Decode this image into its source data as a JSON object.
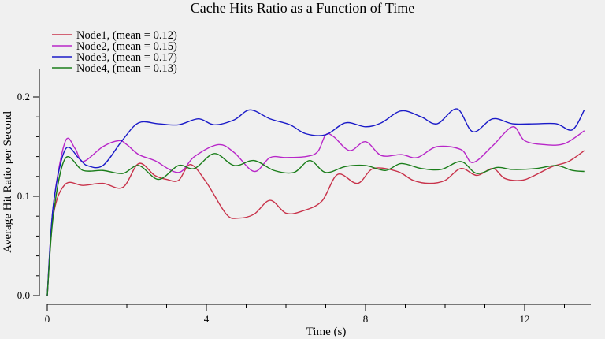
{
  "chart_data": {
    "type": "line",
    "title": "Cache Hits Ratio as a Function of Time",
    "xlabel": "Time (s)",
    "ylabel": "Average Hit Ratio per Second",
    "xlim": [
      0,
      14
    ],
    "ylim": [
      0,
      0.22
    ],
    "x_ticks": [
      0,
      4,
      8,
      12
    ],
    "x_tick_labels": [
      "0",
      "4",
      "8",
      "12"
    ],
    "x_minor_ticks": [
      1,
      2,
      3,
      5,
      6,
      7,
      9,
      10,
      11,
      13
    ],
    "y_ticks": [
      0,
      0.1,
      0.2
    ],
    "y_tick_labels": [
      "0.0",
      "0.1",
      "0.2"
    ],
    "y_minor_ticks": [
      0.02,
      0.04,
      0.06,
      0.08,
      0.12,
      0.14,
      0.16,
      0.18
    ],
    "grid": false,
    "legend_position": "top-left",
    "series": [
      {
        "name": "Node1, (mean = 0.12)",
        "color": "#c8324a",
        "points": [
          [
            0,
            0
          ],
          [
            0.15,
            0.08
          ],
          [
            0.45,
            0.112
          ],
          [
            0.9,
            0.111
          ],
          [
            1.4,
            0.113
          ],
          [
            1.9,
            0.109
          ],
          [
            2.3,
            0.133
          ],
          [
            2.7,
            0.121
          ],
          [
            3.0,
            0.117
          ],
          [
            3.3,
            0.116
          ],
          [
            3.6,
            0.132
          ],
          [
            4.0,
            0.114
          ],
          [
            4.5,
            0.082
          ],
          [
            4.8,
            0.078
          ],
          [
            5.2,
            0.082
          ],
          [
            5.6,
            0.096
          ],
          [
            6.0,
            0.083
          ],
          [
            6.4,
            0.085
          ],
          [
            6.9,
            0.095
          ],
          [
            7.3,
            0.122
          ],
          [
            7.8,
            0.113
          ],
          [
            8.2,
            0.128
          ],
          [
            8.8,
            0.125
          ],
          [
            9.2,
            0.116
          ],
          [
            9.6,
            0.113
          ],
          [
            10.0,
            0.116
          ],
          [
            10.4,
            0.128
          ],
          [
            10.8,
            0.121
          ],
          [
            11.2,
            0.128
          ],
          [
            11.5,
            0.118
          ],
          [
            11.9,
            0.116
          ],
          [
            12.2,
            0.12
          ],
          [
            12.7,
            0.13
          ],
          [
            13.1,
            0.135
          ],
          [
            13.5,
            0.146
          ]
        ]
      },
      {
        "name": "Node2, (mean = 0.15)",
        "color": "#b827c8",
        "points": [
          [
            0,
            0
          ],
          [
            0.15,
            0.09
          ],
          [
            0.45,
            0.155
          ],
          [
            0.7,
            0.148
          ],
          [
            0.9,
            0.135
          ],
          [
            1.4,
            0.15
          ],
          [
            1.8,
            0.156
          ],
          [
            2.0,
            0.152
          ],
          [
            2.3,
            0.142
          ],
          [
            2.7,
            0.136
          ],
          [
            3.3,
            0.124
          ],
          [
            3.7,
            0.14
          ],
          [
            4.3,
            0.152
          ],
          [
            4.7,
            0.144
          ],
          [
            5.2,
            0.125
          ],
          [
            5.6,
            0.139
          ],
          [
            6.0,
            0.139
          ],
          [
            6.5,
            0.14
          ],
          [
            6.8,
            0.145
          ],
          [
            7.0,
            0.162
          ],
          [
            7.2,
            0.16
          ],
          [
            7.6,
            0.146
          ],
          [
            8.0,
            0.155
          ],
          [
            8.4,
            0.141
          ],
          [
            8.9,
            0.142
          ],
          [
            9.3,
            0.139
          ],
          [
            9.8,
            0.15
          ],
          [
            10.4,
            0.147
          ],
          [
            10.7,
            0.134
          ],
          [
            11.2,
            0.151
          ],
          [
            11.7,
            0.17
          ],
          [
            12.0,
            0.156
          ],
          [
            12.5,
            0.152
          ],
          [
            13.0,
            0.153
          ],
          [
            13.5,
            0.166
          ]
        ]
      },
      {
        "name": "Node3, (mean = 0.17)",
        "color": "#1a1ac8",
        "points": [
          [
            0,
            0
          ],
          [
            0.15,
            0.09
          ],
          [
            0.45,
            0.147
          ],
          [
            0.8,
            0.138
          ],
          [
            1.0,
            0.131
          ],
          [
            1.4,
            0.131
          ],
          [
            1.9,
            0.157
          ],
          [
            2.3,
            0.174
          ],
          [
            2.8,
            0.173
          ],
          [
            3.3,
            0.172
          ],
          [
            3.8,
            0.178
          ],
          [
            4.2,
            0.172
          ],
          [
            4.7,
            0.177
          ],
          [
            5.1,
            0.187
          ],
          [
            5.6,
            0.178
          ],
          [
            6.1,
            0.172
          ],
          [
            6.5,
            0.163
          ],
          [
            7.0,
            0.162
          ],
          [
            7.5,
            0.174
          ],
          [
            8.0,
            0.17
          ],
          [
            8.4,
            0.174
          ],
          [
            8.9,
            0.186
          ],
          [
            9.4,
            0.18
          ],
          [
            9.8,
            0.173
          ],
          [
            10.3,
            0.188
          ],
          [
            10.7,
            0.165
          ],
          [
            11.2,
            0.178
          ],
          [
            11.7,
            0.173
          ],
          [
            12.3,
            0.173
          ],
          [
            12.8,
            0.173
          ],
          [
            13.2,
            0.167
          ],
          [
            13.5,
            0.187
          ]
        ]
      },
      {
        "name": "Node4, (mean = 0.13)",
        "color": "#1a7d1a",
        "points": [
          [
            0,
            0
          ],
          [
            0.15,
            0.08
          ],
          [
            0.45,
            0.138
          ],
          [
            0.9,
            0.126
          ],
          [
            1.4,
            0.126
          ],
          [
            1.9,
            0.123
          ],
          [
            2.3,
            0.131
          ],
          [
            2.8,
            0.117
          ],
          [
            3.3,
            0.131
          ],
          [
            3.7,
            0.128
          ],
          [
            4.2,
            0.143
          ],
          [
            4.7,
            0.131
          ],
          [
            5.2,
            0.136
          ],
          [
            5.7,
            0.126
          ],
          [
            6.2,
            0.124
          ],
          [
            6.6,
            0.136
          ],
          [
            7.0,
            0.124
          ],
          [
            7.5,
            0.13
          ],
          [
            8.0,
            0.131
          ],
          [
            8.5,
            0.126
          ],
          [
            8.9,
            0.133
          ],
          [
            9.4,
            0.128
          ],
          [
            9.9,
            0.127
          ],
          [
            10.4,
            0.135
          ],
          [
            10.8,
            0.123
          ],
          [
            11.3,
            0.129
          ],
          [
            11.7,
            0.127
          ],
          [
            12.3,
            0.128
          ],
          [
            12.8,
            0.131
          ],
          [
            13.2,
            0.126
          ],
          [
            13.5,
            0.125
          ]
        ]
      }
    ]
  }
}
